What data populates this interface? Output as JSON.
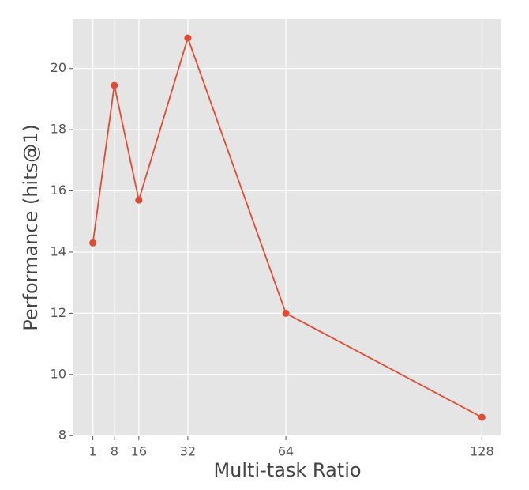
{
  "chart_data": {
    "type": "line",
    "xlabel": "Multi-task Ratio",
    "ylabel": "Performance (hits@1)",
    "x": [
      1,
      8,
      16,
      32,
      64,
      128
    ],
    "values": [
      14.3,
      19.45,
      15.7,
      21.0,
      12.0,
      8.6
    ],
    "color": "#e24a33",
    "xlim": [
      -5.35,
      134.35
    ],
    "ylim": [
      7.98,
      21.62
    ],
    "xticks": [
      1,
      8,
      16,
      32,
      64,
      128
    ],
    "yticks": [
      8,
      10,
      12,
      14,
      16,
      18,
      20
    ],
    "grid": true
  }
}
